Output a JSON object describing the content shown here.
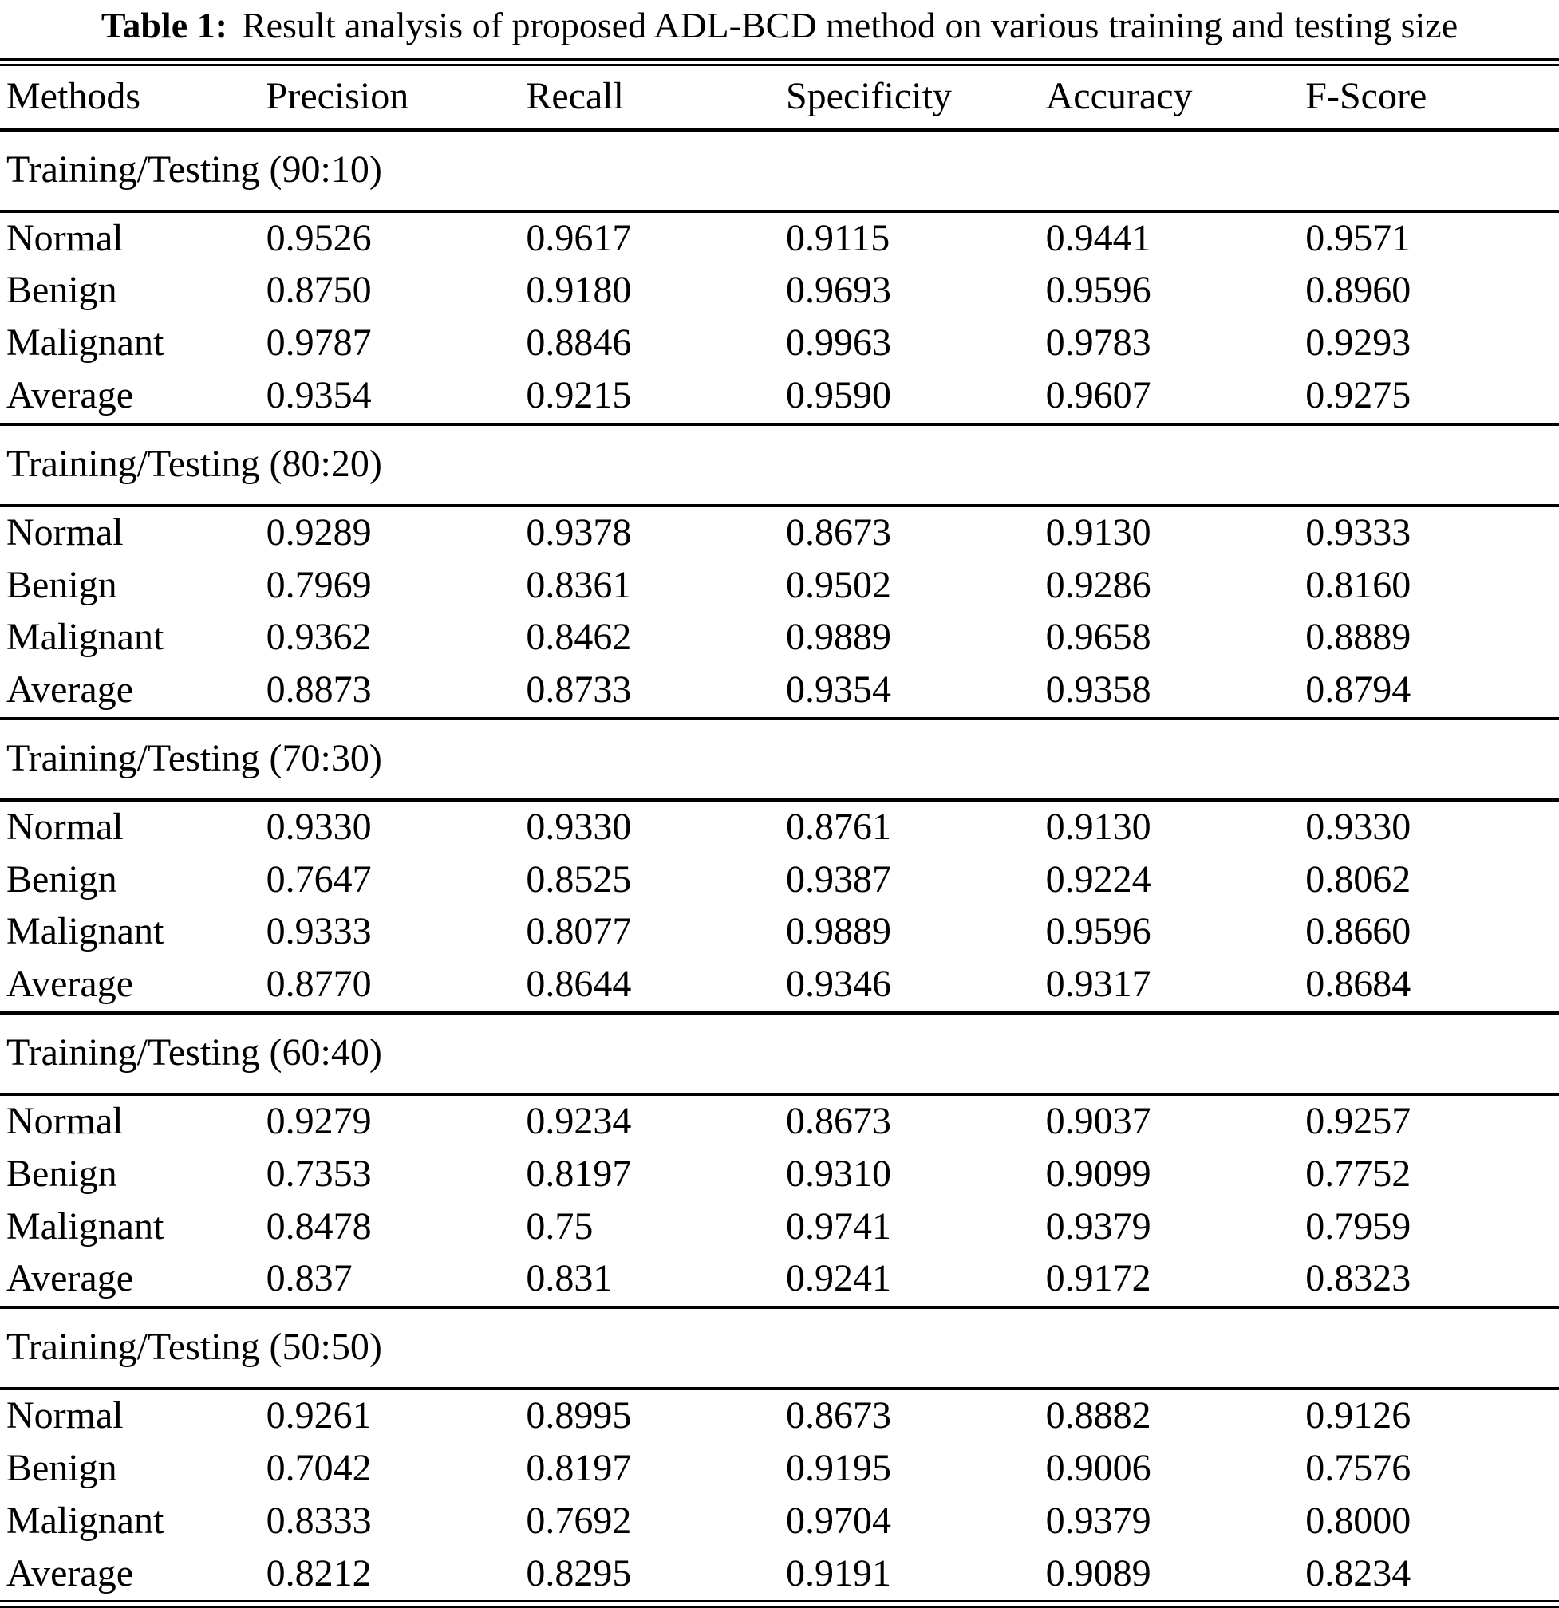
{
  "caption": {
    "label": "Table 1:",
    "text": "Result analysis of proposed ADL-BCD method on various training and testing size"
  },
  "table": {
    "columns": [
      "Methods",
      "Precision",
      "Recall",
      "Specificity",
      "Accuracy",
      "F-Score"
    ],
    "sections": [
      {
        "title": "Training/Testing (90:10)",
        "rows": [
          {
            "method": "Normal",
            "values": [
              "0.9526",
              "0.9617",
              "0.9115",
              "0.9441",
              "0.9571"
            ]
          },
          {
            "method": "Benign",
            "values": [
              "0.8750",
              "0.9180",
              "0.9693",
              "0.9596",
              "0.8960"
            ]
          },
          {
            "method": "Malignant",
            "values": [
              "0.9787",
              "0.8846",
              "0.9963",
              "0.9783",
              "0.9293"
            ]
          },
          {
            "method": "Average",
            "values": [
              "0.9354",
              "0.9215",
              "0.9590",
              "0.9607",
              "0.9275"
            ]
          }
        ]
      },
      {
        "title": "Training/Testing (80:20)",
        "rows": [
          {
            "method": "Normal",
            "values": [
              "0.9289",
              "0.9378",
              "0.8673",
              "0.9130",
              "0.9333"
            ]
          },
          {
            "method": "Benign",
            "values": [
              "0.7969",
              "0.8361",
              "0.9502",
              "0.9286",
              "0.8160"
            ]
          },
          {
            "method": "Malignant",
            "values": [
              "0.9362",
              "0.8462",
              "0.9889",
              "0.9658",
              "0.8889"
            ]
          },
          {
            "method": "Average",
            "values": [
              "0.8873",
              "0.8733",
              "0.9354",
              "0.9358",
              "0.8794"
            ]
          }
        ]
      },
      {
        "title": "Training/Testing (70:30)",
        "rows": [
          {
            "method": "Normal",
            "values": [
              "0.9330",
              "0.9330",
              "0.8761",
              "0.9130",
              "0.9330"
            ]
          },
          {
            "method": "Benign",
            "values": [
              "0.7647",
              "0.8525",
              "0.9387",
              "0.9224",
              "0.8062"
            ]
          },
          {
            "method": "Malignant",
            "values": [
              "0.9333",
              "0.8077",
              "0.9889",
              "0.9596",
              "0.8660"
            ]
          },
          {
            "method": "Average",
            "values": [
              "0.8770",
              "0.8644",
              "0.9346",
              "0.9317",
              "0.8684"
            ]
          }
        ]
      },
      {
        "title": "Training/Testing (60:40)",
        "rows": [
          {
            "method": "Normal",
            "values": [
              "0.9279",
              "0.9234",
              "0.8673",
              "0.9037",
              "0.9257"
            ]
          },
          {
            "method": "Benign",
            "values": [
              "0.7353",
              "0.8197",
              "0.9310",
              "0.9099",
              "0.7752"
            ]
          },
          {
            "method": "Malignant",
            "values": [
              "0.8478",
              "0.75",
              "0.9741",
              "0.9379",
              "0.7959"
            ]
          },
          {
            "method": "Average",
            "values": [
              "0.837",
              "0.831",
              "0.9241",
              "0.9172",
              "0.8323"
            ]
          }
        ]
      },
      {
        "title": "Training/Testing (50:50)",
        "rows": [
          {
            "method": "Normal",
            "values": [
              "0.9261",
              "0.8995",
              "0.8673",
              "0.8882",
              "0.9126"
            ]
          },
          {
            "method": "Benign",
            "values": [
              "0.7042",
              "0.8197",
              "0.9195",
              "0.9006",
              "0.7576"
            ]
          },
          {
            "method": "Malignant",
            "values": [
              "0.8333",
              "0.7692",
              "0.9704",
              "0.9379",
              "0.8000"
            ]
          },
          {
            "method": "Average",
            "values": [
              "0.8212",
              "0.8295",
              "0.9191",
              "0.9089",
              "0.8234"
            ]
          }
        ]
      }
    ]
  }
}
